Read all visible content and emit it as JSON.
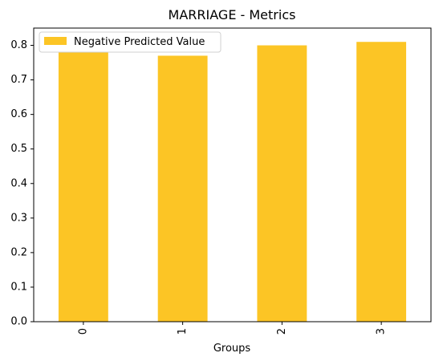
{
  "chart_data": {
    "type": "bar",
    "title": "MARRIAGE - Metrics",
    "xlabel": "Groups",
    "ylabel": "",
    "categories": [
      "0",
      "1",
      "2",
      "3"
    ],
    "series": [
      {
        "name": "Negative Predicted Value",
        "values": [
          0.78,
          0.77,
          0.8,
          0.81
        ],
        "color": "#fcc525"
      }
    ],
    "ylim": [
      0,
      0.85
    ],
    "yticks": [
      "0.0",
      "0.1",
      "0.2",
      "0.3",
      "0.4",
      "0.5",
      "0.6",
      "0.7",
      "0.8"
    ],
    "legend_position": "top-left",
    "grid": false,
    "x_tick_rotation": "vertical"
  }
}
